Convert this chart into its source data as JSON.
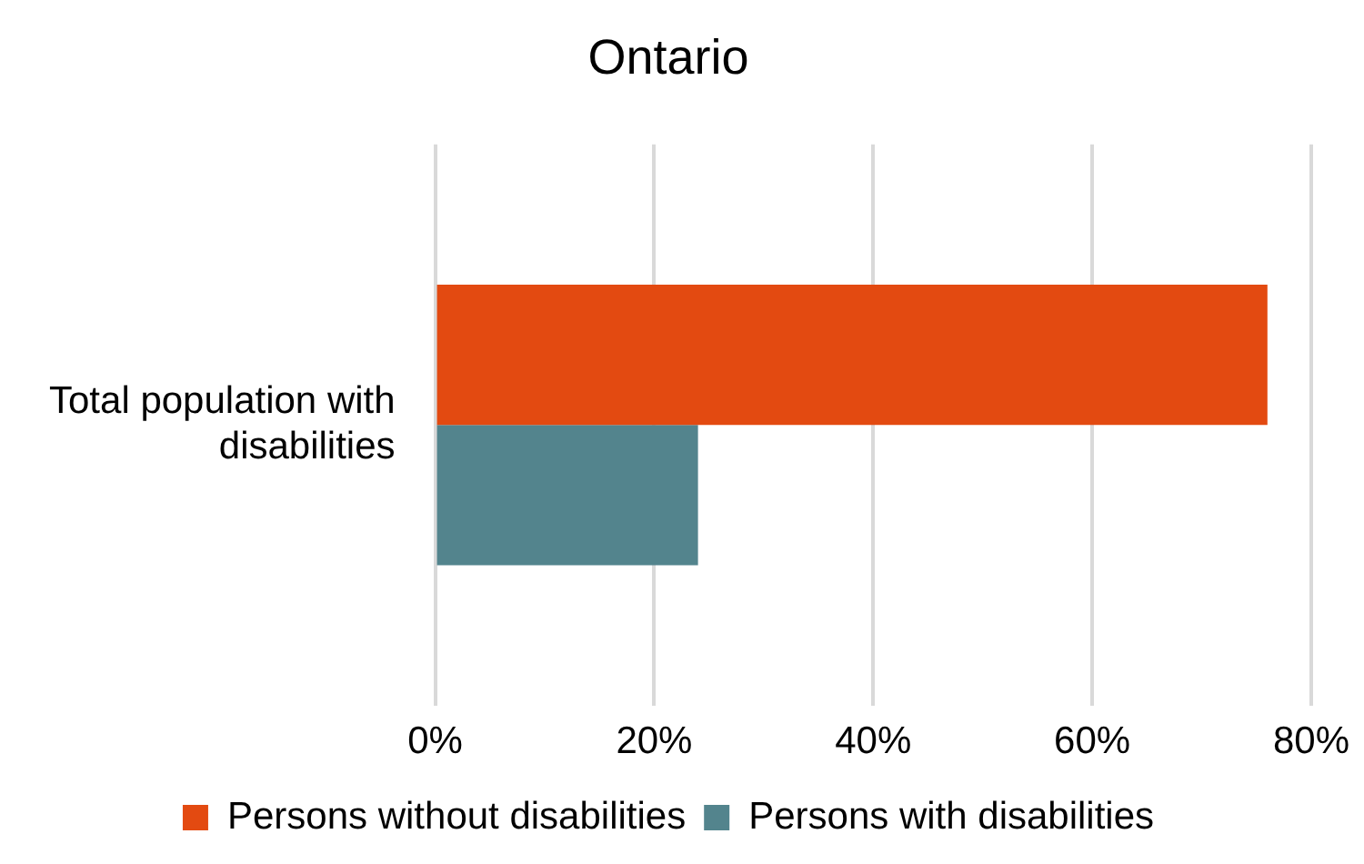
{
  "chart_data": {
    "type": "bar",
    "orientation": "horizontal",
    "title": "Ontario",
    "categories": [
      "Total population with disabilities"
    ],
    "series": [
      {
        "name": "Persons without disabilities",
        "color": "#e34a11",
        "values": [
          76
        ]
      },
      {
        "name": "Persons with disabilities",
        "color": "#53848d",
        "values": [
          24
        ]
      }
    ],
    "xlim": [
      0,
      80
    ],
    "xticks": [
      {
        "value": 0,
        "label": "0%"
      },
      {
        "value": 20,
        "label": "20%"
      },
      {
        "value": 40,
        "label": "40%"
      },
      {
        "value": 60,
        "label": "60%"
      },
      {
        "value": 80,
        "label": "80%"
      }
    ],
    "grid": "x",
    "legend": "bottom"
  }
}
